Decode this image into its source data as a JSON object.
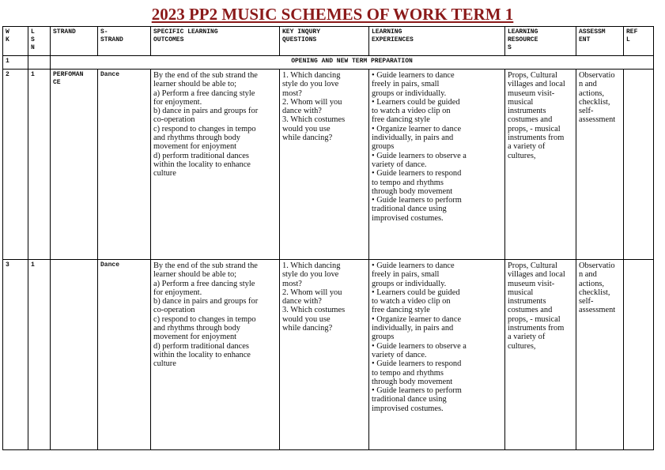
{
  "title": "2023 PP2 MUSIC SCHEMES OF WORK TERM 1",
  "colors": {
    "title": "#8b1a1a"
  },
  "headers": [
    "W\nK",
    "L\nS\nN",
    "STRAND",
    "S-\nSTRAND",
    "SPECIFIC LEARNING\nOUTCOMES",
    "KEY INQURY\nQUESTIONS",
    "LEARNING\nEXPERIENCES",
    "LEARNING\nRESOURCE\nS",
    "ASSESSM\nENT",
    "REF\nL"
  ],
  "week1": {
    "wk": "1",
    "note": "OPENING AND NEW TERM PREPARATION"
  },
  "rows": [
    {
      "wk": "2",
      "lsn": "1",
      "strand": "PERFOMAN\nCE",
      "substrand": "Dance",
      "outcomes": [
        "By the end of the sub strand the",
        "learner should be able to;",
        "a) Perform a free dancing style",
        "for enjoyment.",
        "b) dance in pairs and groups for",
        "co-operation",
        "c) respond to changes in tempo",
        "and rhythms through body",
        "movement for enjoyment",
        "d) perform traditional dances",
        "within the locality to enhance",
        "culture"
      ],
      "questions": [
        "1. Which dancing",
        "style do you love",
        "most?",
        "2. Whom will you",
        "dance with?",
        "3. Which costumes",
        "would you use",
        "while dancing?"
      ],
      "experiences": [
        "• Guide learners to dance",
        "freely in pairs, small",
        "groups or individually.",
        "• Learners could be guided",
        "to watch a video clip on",
        "free dancing style",
        "• Organize learner to dance",
        "individually, in pairs and",
        "groups",
        "• Guide learners to observe a",
        "variety of dance.",
        "• Guide learners to respond",
        "to tempo and rhythms",
        "through body movement",
        "• Guide learners to perform",
        "traditional dance using",
        "improvised costumes."
      ],
      "resources": [
        "Props, Cultural",
        "villages and local",
        "museum visit-",
        "musical",
        "instruments",
        "costumes and",
        "props, - musical",
        "instruments from",
        "a variety of",
        "cultures,"
      ],
      "assessment": [
        "Observatio",
        "n and",
        "actions,",
        "checklist,",
        "self-",
        "assessment"
      ],
      "refl": ""
    },
    {
      "wk": "3",
      "lsn": "1",
      "strand": "",
      "substrand": "Dance",
      "outcomes": [
        "By the end of the sub strand the",
        "learner should be able to;",
        "a) Perform a free dancing style",
        "for enjoyment.",
        "b) dance in pairs and groups for",
        "co-operation",
        "c) respond to changes in tempo",
        "and rhythms through body",
        "movement for enjoyment",
        "d) perform traditional dances",
        "within the locality to enhance",
        "culture"
      ],
      "questions": [
        "1. Which dancing",
        "style do you love",
        "most?",
        "2. Whom will you",
        "dance with?",
        "3. Which costumes",
        "would you use",
        "while dancing?"
      ],
      "experiences": [
        "• Guide learners to dance",
        "freely in pairs, small",
        "groups or individually.",
        "• Learners could be guided",
        "to watch a video clip on",
        "free dancing style",
        "• Organize learner to dance",
        "individually, in pairs and",
        "groups",
        "• Guide learners to observe a",
        "variety of dance.",
        "• Guide learners to respond",
        "to tempo and rhythms",
        "through body movement",
        "• Guide learners to perform",
        "traditional dance using",
        "improvised costumes."
      ],
      "resources": [
        "Props, Cultural",
        "villages and local",
        "museum visit-",
        "musical",
        "instruments",
        "costumes and",
        "props, - musical",
        "instruments from",
        "a variety of",
        "cultures,"
      ],
      "assessment": [
        "Observatio",
        "n and",
        "actions,",
        "checklist,",
        "self-",
        "assessment"
      ],
      "refl": ""
    }
  ]
}
